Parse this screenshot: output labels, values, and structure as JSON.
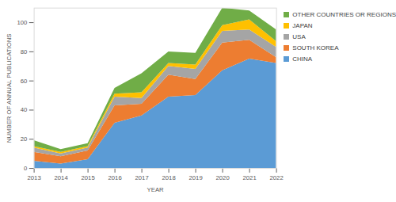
{
  "chart_data": {
    "type": "area",
    "stacked": true,
    "x_label": "YEAR",
    "y_label": "NUMBER OF ANNUAL PUBLICATIONS",
    "x": [
      2013,
      2014,
      2015,
      2016,
      2017,
      2018,
      2019,
      2020,
      2021,
      2022
    ],
    "series": [
      {
        "name": "CHINA",
        "color": "#5b9bd5",
        "values": [
          5,
          3,
          6,
          31,
          36,
          49,
          50,
          67,
          75,
          72
        ]
      },
      {
        "name": "SOUTH KOREA",
        "color": "#ed7d31",
        "values": [
          6,
          5,
          6,
          12,
          8,
          15,
          11,
          19,
          13,
          4
        ]
      },
      {
        "name": "USA",
        "color": "#a5a5a5",
        "values": [
          3,
          2,
          2,
          6,
          4,
          6,
          7,
          8,
          7,
          7
        ]
      },
      {
        "name": "JAPAN",
        "color": "#ffc000",
        "values": [
          1,
          1,
          1,
          2,
          4,
          2,
          3,
          4,
          7,
          4
        ]
      },
      {
        "name": "OTHER COUNTRIES OR REGIONS",
        "color": "#70ad47",
        "values": [
          4,
          2,
          2,
          4,
          13,
          8,
          8,
          12,
          6,
          8
        ]
      }
    ],
    "xlim": [
      2013,
      2022
    ],
    "xticks": [
      2013,
      2014,
      2015,
      2016,
      2017,
      2018,
      2019,
      2020,
      2021,
      2022
    ],
    "ylim": [
      0,
      110
    ],
    "yticks": [
      0,
      20,
      40,
      60,
      80,
      100
    ],
    "grid": false,
    "legend": "right"
  }
}
